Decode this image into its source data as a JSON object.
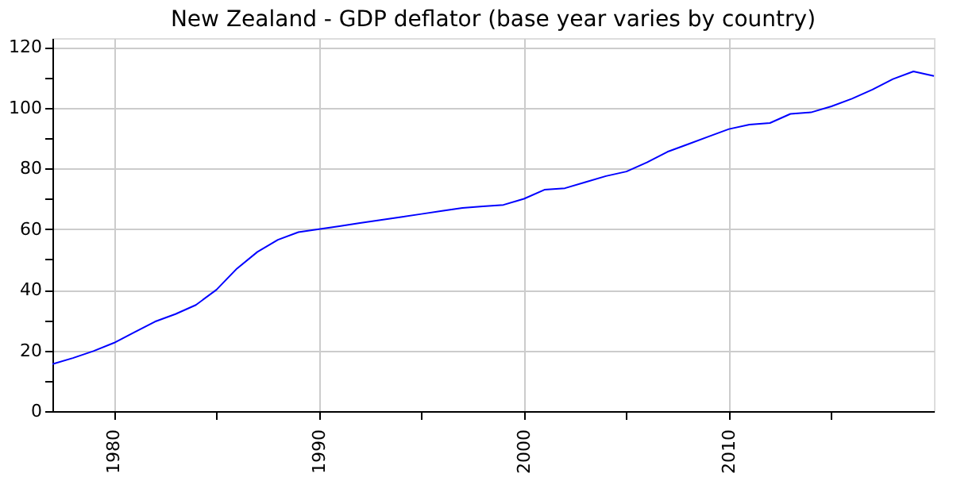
{
  "chart_data": {
    "type": "line",
    "title": "New Zealand - GDP deflator (base year varies by country)",
    "x": [
      1977,
      1978,
      1979,
      1980,
      1981,
      1982,
      1983,
      1984,
      1985,
      1986,
      1987,
      1988,
      1989,
      1990,
      1991,
      1992,
      1993,
      1994,
      1995,
      1996,
      1997,
      1998,
      1999,
      2000,
      2001,
      2002,
      2003,
      2004,
      2005,
      2006,
      2007,
      2008,
      2009,
      2010,
      2011,
      2012,
      2013,
      2014,
      2015,
      2016,
      2017,
      2018,
      2019,
      2020
    ],
    "series": [
      {
        "color": "#0000ff",
        "values": [
          15.5,
          17.5,
          19.8,
          22.5,
          26,
          29.5,
          32,
          35,
          40,
          47,
          52.5,
          56.5,
          59,
          60,
          61,
          62,
          63,
          64,
          65,
          66,
          67,
          67.5,
          68,
          70,
          73,
          73.5,
          75.5,
          77.5,
          79,
          82,
          85.5,
          88,
          90.5,
          93,
          94.5,
          95,
          98,
          98.5,
          100.5,
          103,
          106,
          109.5,
          112,
          110.5
        ]
      }
    ],
    "xlim": [
      1977,
      2020
    ],
    "xticks": [
      1980,
      {
        "value": 1985,
        "label": null
      },
      1990,
      {
        "value": 1995,
        "label": null
      },
      2000,
      {
        "value": 2005,
        "label": null
      },
      2010,
      {
        "value": 2015,
        "label": null
      }
    ],
    "ylim": [
      0,
      123
    ],
    "yticks": [
      0,
      {
        "value": 10,
        "label": null
      },
      20,
      {
        "value": 30,
        "label": null
      },
      40,
      {
        "value": 50,
        "label": null
      },
      60,
      {
        "value": 70,
        "label": null
      },
      80,
      {
        "value": 90,
        "label": null
      },
      100,
      {
        "value": 110,
        "label": null
      },
      120
    ],
    "grid": true,
    "line_style": "solid",
    "marker": "none"
  }
}
